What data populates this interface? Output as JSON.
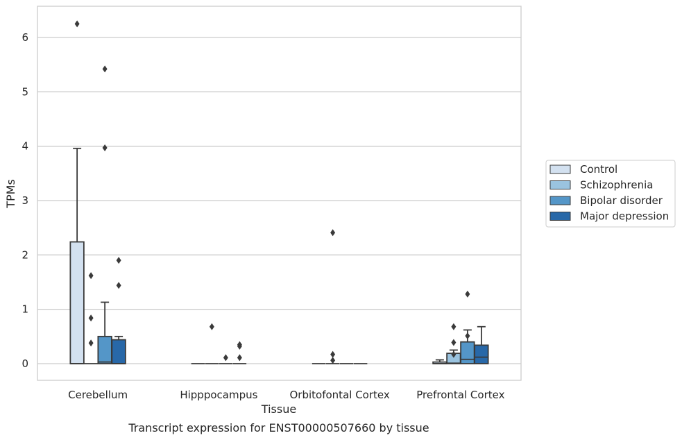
{
  "caption": "Transcript expression for ENST00000507660 by tissue",
  "chart_data": {
    "type": "boxplot",
    "title": "",
    "xlabel": "Tissue",
    "ylabel": "TPMs",
    "ylim": [
      -0.3,
      6.6
    ],
    "yticks": [
      0,
      1,
      2,
      3,
      4,
      5,
      6
    ],
    "grid": "y",
    "legend_position": "right",
    "categories": [
      "Cerebellum",
      "Hipppocampus",
      "Orbitofontal Cortex",
      "Prefrontal Cortex"
    ],
    "series": [
      {
        "name": "Control",
        "color": "#d3e1f0",
        "boxes": [
          {
            "q1": 0,
            "median": 0,
            "q3": 2.24,
            "whisker_low": 0,
            "whisker_high": 3.96,
            "outliers": [
              6.25
            ]
          },
          {
            "q1": 0,
            "median": 0,
            "q3": 0,
            "whisker_low": 0,
            "whisker_high": 0,
            "outliers": []
          },
          {
            "q1": 0,
            "median": 0,
            "q3": 0,
            "whisker_low": 0,
            "whisker_high": 0,
            "outliers": []
          },
          {
            "q1": 0,
            "median": 0,
            "q3": 0.03,
            "whisker_low": 0,
            "whisker_high": 0.07,
            "outliers": []
          }
        ]
      },
      {
        "name": "Schizophrenia",
        "color": "#9ac3df",
        "boxes": [
          {
            "q1": 0,
            "median": 0,
            "q3": 0,
            "whisker_low": 0,
            "whisker_high": 0,
            "outliers": [
              1.62,
              0.84,
              0.38
            ]
          },
          {
            "q1": 0,
            "median": 0,
            "q3": 0,
            "whisker_low": 0,
            "whisker_high": 0,
            "outliers": [
              0.68
            ]
          },
          {
            "q1": 0,
            "median": 0,
            "q3": 0,
            "whisker_low": 0,
            "whisker_high": 0,
            "outliers": [
              2.41,
              0.17,
              0.06
            ]
          },
          {
            "q1": 0,
            "median": 0.01,
            "q3": 0.19,
            "whisker_low": 0,
            "whisker_high": 0.25,
            "outliers": [
              0.68,
              0.39,
              0.17
            ]
          }
        ]
      },
      {
        "name": "Bipolar disorder",
        "color": "#5496c8",
        "boxes": [
          {
            "q1": 0,
            "median": 0.03,
            "q3": 0.5,
            "whisker_low": 0,
            "whisker_high": 1.13,
            "outliers": [
              5.42,
              3.97
            ]
          },
          {
            "q1": 0,
            "median": 0,
            "q3": 0,
            "whisker_low": 0,
            "whisker_high": 0,
            "outliers": [
              0.11
            ]
          },
          {
            "q1": 0,
            "median": 0,
            "q3": 0,
            "whisker_low": 0,
            "whisker_high": 0,
            "outliers": []
          },
          {
            "q1": 0,
            "median": 0.08,
            "q3": 0.4,
            "whisker_low": 0,
            "whisker_high": 0.62,
            "outliers": [
              1.28,
              0.51
            ]
          }
        ]
      },
      {
        "name": "Major depression",
        "color": "#2868a8",
        "boxes": [
          {
            "q1": 0,
            "median": 0,
            "q3": 0.44,
            "whisker_low": 0,
            "whisker_high": 0.5,
            "outliers": [
              1.9,
              1.44
            ]
          },
          {
            "q1": 0,
            "median": 0,
            "q3": 0,
            "whisker_low": 0,
            "whisker_high": 0,
            "outliers": [
              0.35,
              0.32,
              0.11
            ]
          },
          {
            "q1": 0,
            "median": 0,
            "q3": 0,
            "whisker_low": 0,
            "whisker_high": 0,
            "outliers": []
          },
          {
            "q1": 0,
            "median": 0.12,
            "q3": 0.34,
            "whisker_low": 0,
            "whisker_high": 0.68,
            "outliers": []
          }
        ]
      }
    ]
  }
}
